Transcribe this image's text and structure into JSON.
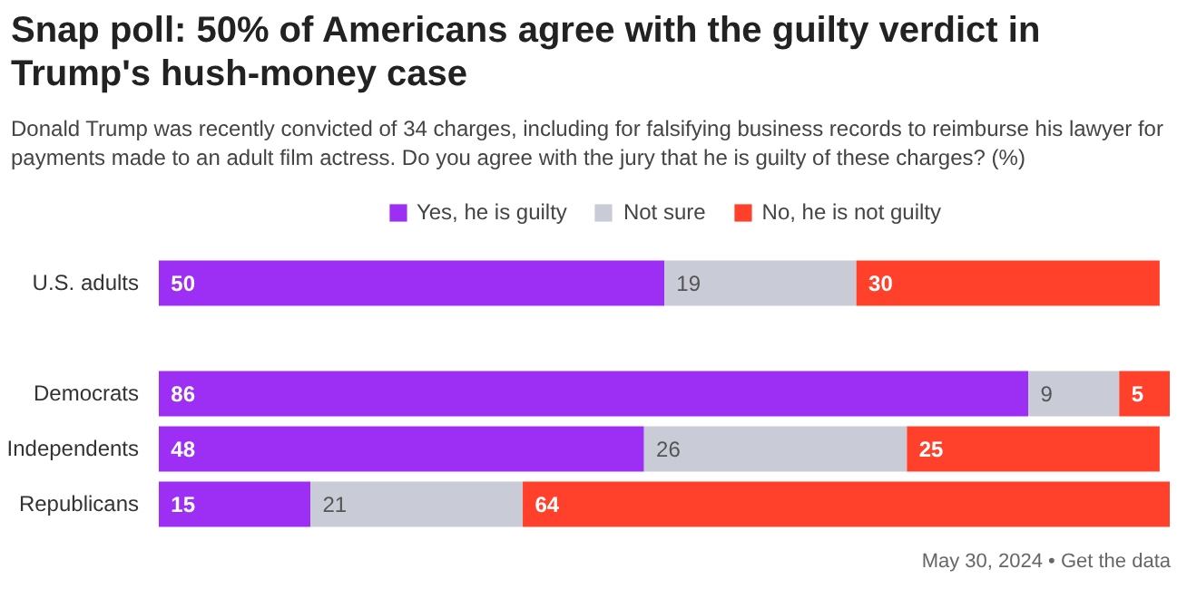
{
  "chart_data": {
    "type": "bar",
    "orientation": "horizontal",
    "stacked": true,
    "data_labels": true,
    "grid": false,
    "legend": "top",
    "title": "Snap poll: 50% of Americans agree with the guilty verdict in Trump's hush-money case",
    "subtitle": "Donald Trump was recently convicted of 34 charges, including for falsifying business records to reimburse his lawyer for payments made to an adult film actress. Do you agree with the jury that he is guilty of these charges? (%)",
    "categories": [
      "U.S. adults",
      null,
      "Democrats",
      "Independents",
      "Republicans"
    ],
    "series": [
      {
        "name": "Yes, he is guilty",
        "color": "#9d2ff5",
        "values": [
          50,
          null,
          86,
          48,
          15
        ]
      },
      {
        "name": "Not sure",
        "color": "#c9ccd6",
        "values": [
          19,
          null,
          9,
          26,
          21
        ]
      },
      {
        "name": "No, he is not guilty",
        "color": "#ff412c",
        "values": [
          30,
          null,
          5,
          25,
          64
        ]
      }
    ],
    "annotations": [
      "May 30, 2024 • Get the data"
    ]
  }
}
